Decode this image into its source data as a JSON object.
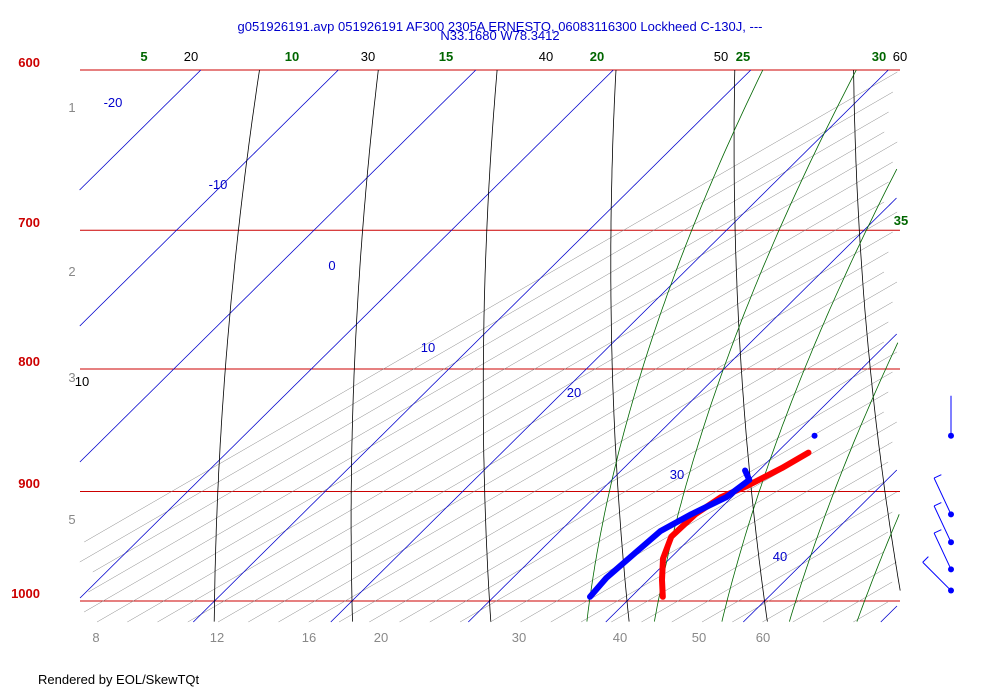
{
  "chart_data": {
    "type": "line",
    "title_line1": "g051926191.avp 051926191 AF300 2305A ERNESTO, 06083116300 Lockheed C-130J, ---",
    "title_line2": "N33.1680 W78.3412",
    "credit": "Rendered by EOL/SkewTQt",
    "pressure_levels": [
      600,
      700,
      800,
      900,
      1000
    ],
    "isotherm_labels": [
      -20,
      -10,
      0,
      10,
      20,
      30,
      40
    ],
    "dry_adiabat_labels": [
      10,
      20,
      30,
      40,
      50,
      60
    ],
    "moist_adiabat_labels": [
      5,
      10,
      15,
      20,
      25,
      30,
      35
    ],
    "mixing_ratio_labels": [
      8,
      12,
      16,
      20,
      30,
      40,
      50,
      60
    ],
    "height_labels": [
      1,
      2,
      3,
      5
    ],
    "series": [
      {
        "name": "temperature",
        "color": "#ff0000",
        "points": [
          [
            867,
            22.3
          ],
          [
            880,
            21.5
          ],
          [
            895,
            20.3
          ],
          [
            905,
            19.2
          ],
          [
            920,
            18.6
          ],
          [
            940,
            18.5
          ],
          [
            960,
            19.5
          ],
          [
            980,
            21.0
          ],
          [
            996,
            22.3
          ]
        ]
      },
      {
        "name": "dewpoint",
        "color": "#0000ff",
        "points": [
          [
            882,
            19.0
          ],
          [
            890,
            20.0
          ],
          [
            905,
            19.6
          ],
          [
            920,
            18.3
          ],
          [
            935,
            17.3
          ],
          [
            960,
            17.0
          ],
          [
            978,
            16.8
          ],
          [
            996,
            17.0
          ]
        ]
      }
    ],
    "isolated_point": {
      "p": 853,
      "t": 21.5
    },
    "wind_barbs": [
      {
        "p": 853,
        "direction": 360,
        "speed": 5
      },
      {
        "p": 920,
        "direction": 335,
        "speed": 10
      },
      {
        "p": 945,
        "direction": 335,
        "speed": 10
      },
      {
        "p": 970,
        "direction": 335,
        "speed": 10
      },
      {
        "p": 990,
        "direction": 315,
        "speed": 10
      }
    ],
    "ylim": [
      1050,
      600
    ],
    "xlim": [
      -30,
      45
    ],
    "grid": true
  }
}
